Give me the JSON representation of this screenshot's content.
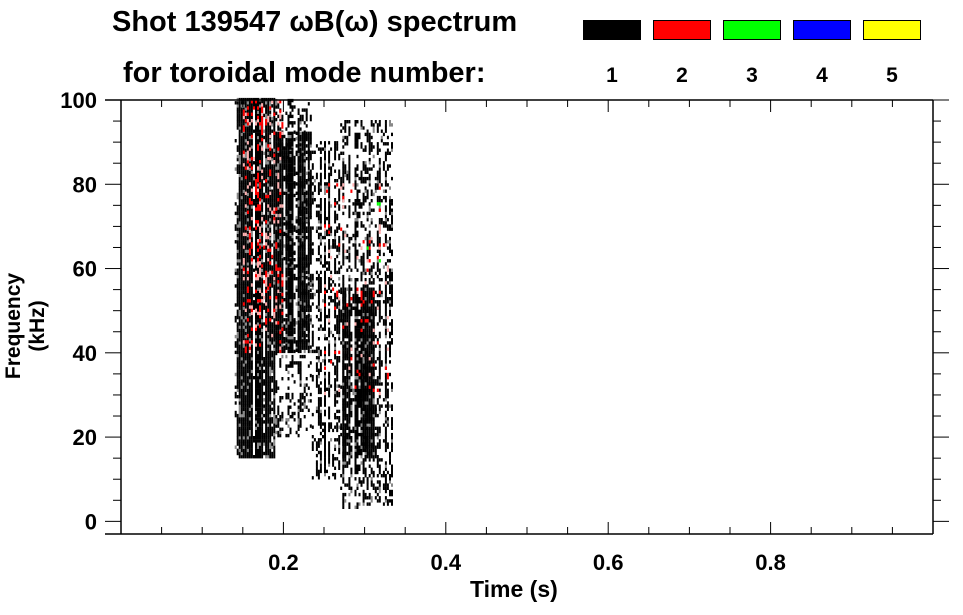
{
  "chart_data": {
    "type": "heatmap",
    "title": "Shot 139547 ωB(ω) spectrum",
    "subtitle": "for toroidal mode number:",
    "xlabel": "Time (s)",
    "ylabel": "Frequency (kHz)",
    "xlim": [
      0.0,
      1.0
    ],
    "ylim": [
      -3,
      100
    ],
    "xticks": [
      0.2,
      0.4,
      0.6,
      0.8
    ],
    "xtick_labels": [
      "0.2",
      "0.4",
      "0.6",
      "0.8"
    ],
    "yticks": [
      0,
      20,
      40,
      60,
      80,
      100
    ],
    "ytick_labels": [
      "0",
      "20",
      "40",
      "60",
      "80",
      "100"
    ],
    "legend": [
      {
        "mode": "1",
        "color": "#000000"
      },
      {
        "mode": "2",
        "color": "#ff0000"
      },
      {
        "mode": "3",
        "color": "#00ff00"
      },
      {
        "mode": "4",
        "color": "#0000ff"
      },
      {
        "mode": "5",
        "color": "#ffff00"
      }
    ],
    "legend_placement": "top-right",
    "activity_regions": [
      {
        "mode": 1,
        "t": [
          0.14,
          0.19
        ],
        "f": [
          15,
          100
        ],
        "density": 0.55
      },
      {
        "mode": 1,
        "t": [
          0.19,
          0.235
        ],
        "f": [
          40,
          92
        ],
        "density": 0.8
      },
      {
        "mode": 1,
        "t": [
          0.19,
          0.235
        ],
        "f": [
          20,
          100
        ],
        "density": 0.25
      },
      {
        "mode": 1,
        "t": [
          0.235,
          0.27
        ],
        "f": [
          10,
          90
        ],
        "density": 0.3
      },
      {
        "mode": 1,
        "t": [
          0.27,
          0.315
        ],
        "f": [
          15,
          55
        ],
        "density": 0.6
      },
      {
        "mode": 1,
        "t": [
          0.27,
          0.335
        ],
        "f": [
          3,
          95
        ],
        "density": 0.28
      },
      {
        "mode": 2,
        "t": [
          0.15,
          0.2
        ],
        "f": [
          40,
          100
        ],
        "density": 0.12
      },
      {
        "mode": 2,
        "t": [
          0.25,
          0.33
        ],
        "f": [
          30,
          80
        ],
        "density": 0.05
      },
      {
        "mode": 3,
        "t": [
          0.29,
          0.32
        ],
        "f": [
          60,
          80
        ],
        "density": 0.02
      }
    ]
  }
}
